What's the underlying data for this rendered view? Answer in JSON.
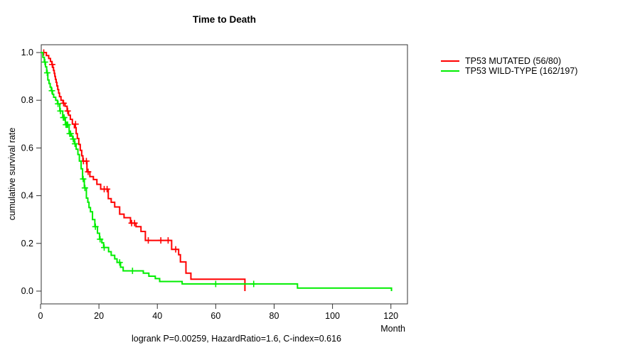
{
  "title": "Time to Death",
  "footer": "logrank P=0.00259, HazardRatio=1.6, C-index=0.616",
  "chart_data": {
    "type": "line",
    "subtype": "kaplan-meier-step-curve",
    "title": "Time to Death",
    "xlabel": "Month",
    "ylabel": "cumulative survival rate",
    "xlim": [
      0,
      125.5
    ],
    "ylim": [
      0,
      1.0
    ],
    "x_ticks": [
      0,
      20,
      40,
      60,
      80,
      100,
      120
    ],
    "y_ticks": [
      "0.0",
      "0.2",
      "0.4",
      "0.6",
      "0.8",
      "1.0"
    ],
    "grid": false,
    "legend_position": "right-outside",
    "annotation": "logrank P=0.00259, HazardRatio=1.6, C-index=0.616",
    "series": [
      {
        "name": "TP53 MUTATED (56/80)",
        "color": "#ff0000",
        "steps": [
          [
            0,
            1.0
          ],
          [
            2.0,
            0.9875
          ],
          [
            2.8,
            0.975
          ],
          [
            3.4,
            0.9625
          ],
          [
            3.9,
            0.95
          ],
          [
            4.2,
            0.9375
          ],
          [
            4.45,
            0.925
          ],
          [
            4.7,
            0.9125
          ],
          [
            4.9,
            0.9
          ],
          [
            5.1,
            0.8875
          ],
          [
            5.35,
            0.875
          ],
          [
            5.6,
            0.86
          ],
          [
            5.9,
            0.845
          ],
          [
            6.2,
            0.83
          ],
          [
            6.5,
            0.815
          ],
          [
            7.0,
            0.8
          ],
          [
            7.7,
            0.7875
          ],
          [
            8.4,
            0.775
          ],
          [
            9.1,
            0.755
          ],
          [
            9.6,
            0.7375
          ],
          [
            10.2,
            0.72
          ],
          [
            10.9,
            0.7
          ],
          [
            11.6,
            0.685
          ],
          [
            12.2,
            0.66
          ],
          [
            12.6,
            0.64
          ],
          [
            13.1,
            0.615
          ],
          [
            13.6,
            0.59
          ],
          [
            14.1,
            0.5675
          ],
          [
            14.5,
            0.545
          ],
          [
            15.9,
            0.5
          ],
          [
            16.9,
            0.48
          ],
          [
            18.1,
            0.4675
          ],
          [
            19.3,
            0.4475
          ],
          [
            20.6,
            0.4275
          ],
          [
            23.2,
            0.3875
          ],
          [
            24.2,
            0.3725
          ],
          [
            25.4,
            0.3525
          ],
          [
            27.1,
            0.3225
          ],
          [
            28.6,
            0.3075
          ],
          [
            30.8,
            0.285
          ],
          [
            32.7,
            0.27
          ],
          [
            34.4,
            0.25
          ],
          [
            35.9,
            0.2125
          ],
          [
            44.9,
            0.175
          ],
          [
            47.3,
            0.1525
          ],
          [
            47.9,
            0.1225
          ],
          [
            49.8,
            0.075
          ],
          [
            51.5,
            0.05
          ],
          [
            70.0,
            0.0
          ]
        ],
        "censors": [
          [
            1.1,
            1.0
          ],
          [
            4.0,
            0.95
          ],
          [
            7.9,
            0.7875
          ],
          [
            9.3,
            0.755
          ],
          [
            12.0,
            0.7
          ],
          [
            14.7,
            0.545
          ],
          [
            15.7,
            0.545
          ],
          [
            16.3,
            0.5
          ],
          [
            21.8,
            0.4275
          ],
          [
            22.8,
            0.4275
          ],
          [
            31.2,
            0.285
          ],
          [
            32.2,
            0.285
          ],
          [
            36.9,
            0.2125
          ],
          [
            41.2,
            0.2125
          ],
          [
            43.7,
            0.2125
          ],
          [
            46.3,
            0.175
          ]
        ]
      },
      {
        "name": "TP53 WILD-TYPE (162/197)",
        "color": "#00ee00",
        "steps": [
          [
            0,
            1.0
          ],
          [
            0.8,
            0.98
          ],
          [
            1.3,
            0.96
          ],
          [
            1.7,
            0.94
          ],
          [
            2.1,
            0.915
          ],
          [
            2.5,
            0.885
          ],
          [
            2.9,
            0.87
          ],
          [
            3.3,
            0.855
          ],
          [
            3.7,
            0.84
          ],
          [
            4.1,
            0.825
          ],
          [
            4.5,
            0.8125
          ],
          [
            5.2,
            0.8
          ],
          [
            5.8,
            0.785
          ],
          [
            6.6,
            0.755
          ],
          [
            7.6,
            0.7275
          ],
          [
            8.5,
            0.6975
          ],
          [
            9.8,
            0.66
          ],
          [
            10.6,
            0.65
          ],
          [
            11.0,
            0.6375
          ],
          [
            11.6,
            0.6175
          ],
          [
            12.2,
            0.595
          ],
          [
            12.8,
            0.5725
          ],
          [
            13.3,
            0.545
          ],
          [
            13.9,
            0.5125
          ],
          [
            14.4,
            0.47
          ],
          [
            15.0,
            0.4325
          ],
          [
            15.7,
            0.39
          ],
          [
            16.2,
            0.3725
          ],
          [
            16.6,
            0.35
          ],
          [
            17.1,
            0.3325
          ],
          [
            17.8,
            0.3
          ],
          [
            18.6,
            0.27
          ],
          [
            19.5,
            0.2425
          ],
          [
            20.2,
            0.2175
          ],
          [
            21.0,
            0.2025
          ],
          [
            21.6,
            0.1825
          ],
          [
            23.3,
            0.165
          ],
          [
            24.2,
            0.15
          ],
          [
            25.4,
            0.135
          ],
          [
            26.2,
            0.12
          ],
          [
            27.4,
            0.1
          ],
          [
            28.3,
            0.085
          ],
          [
            35.2,
            0.075
          ],
          [
            37.1,
            0.0625
          ],
          [
            39.3,
            0.0525
          ],
          [
            40.8,
            0.04
          ],
          [
            48.5,
            0.03
          ],
          [
            88.0,
            0.0125
          ],
          [
            120.2,
            0.0
          ]
        ],
        "censors": [
          [
            1.5,
            0.96
          ],
          [
            2.3,
            0.915
          ],
          [
            3.9,
            0.84
          ],
          [
            6.0,
            0.785
          ],
          [
            6.8,
            0.755
          ],
          [
            7.8,
            0.7275
          ],
          [
            8.1,
            0.7275
          ],
          [
            8.7,
            0.6975
          ],
          [
            9.0,
            0.6975
          ],
          [
            9.3,
            0.6975
          ],
          [
            10.0,
            0.66
          ],
          [
            10.3,
            0.66
          ],
          [
            11.2,
            0.6375
          ],
          [
            11.8,
            0.6175
          ],
          [
            14.6,
            0.47
          ],
          [
            15.2,
            0.4325
          ],
          [
            18.8,
            0.27
          ],
          [
            20.4,
            0.2175
          ],
          [
            21.8,
            0.1825
          ],
          [
            27.1,
            0.12
          ],
          [
            31.5,
            0.085
          ],
          [
            60.0,
            0.03
          ],
          [
            73.0,
            0.03
          ]
        ]
      }
    ]
  }
}
